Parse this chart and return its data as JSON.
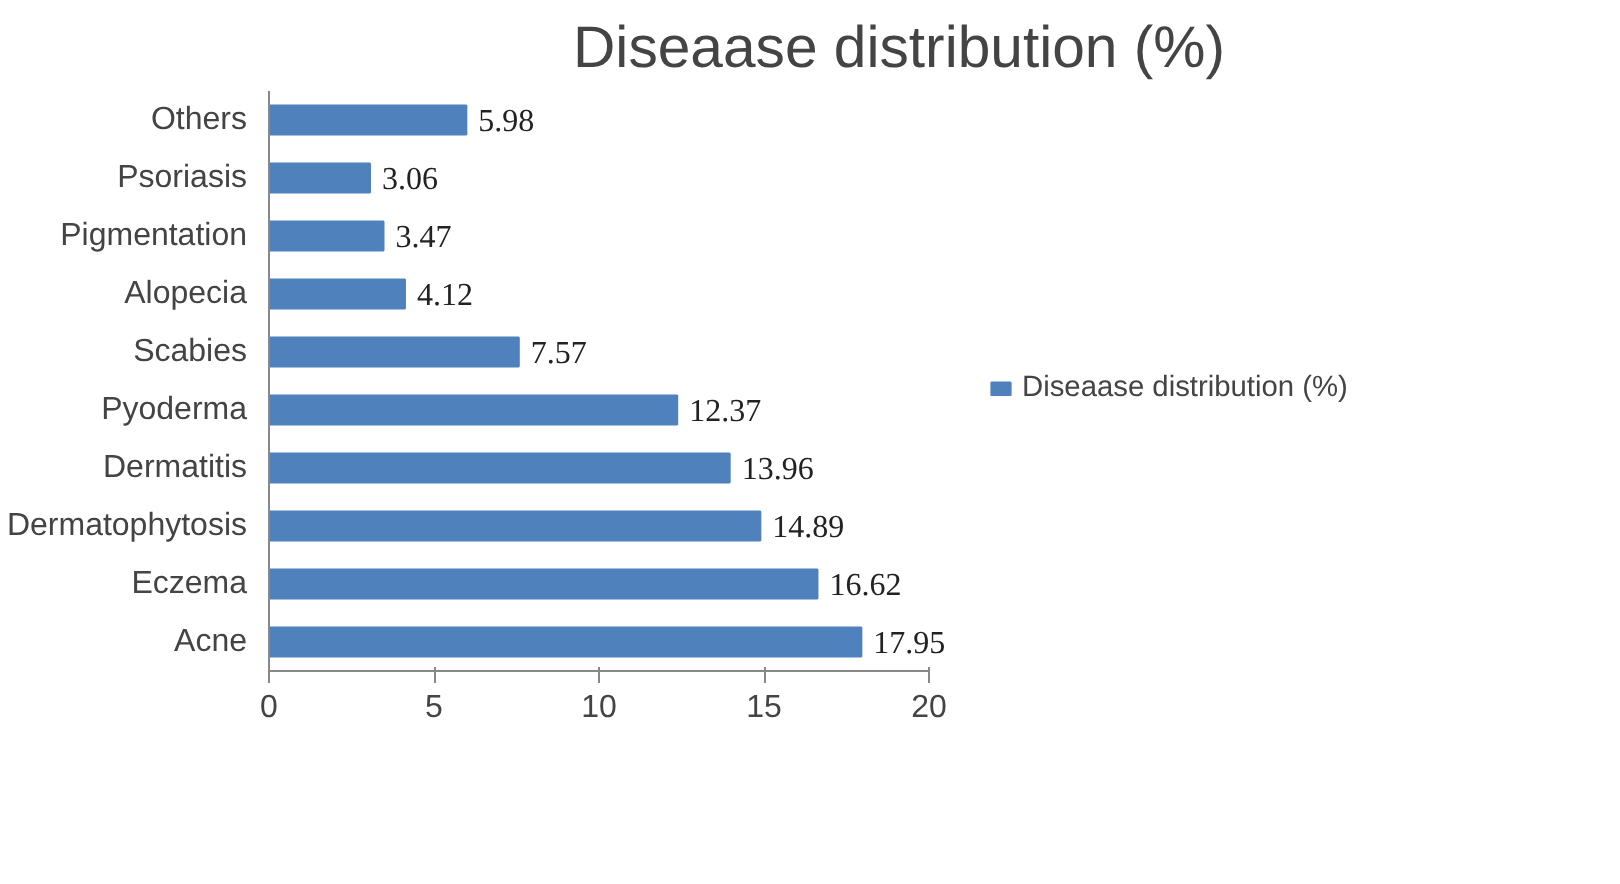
{
  "chart_data": {
    "type": "bar",
    "orientation": "horizontal",
    "title": "Diseaase distribution (%)",
    "categories": [
      "Others",
      "Psoriasis",
      "Pigmentation",
      "Alopecia",
      "Scabies",
      "Pyoderma",
      "Dermatitis",
      "Dermatophytosis",
      "Eczema",
      "Acne"
    ],
    "series": [
      {
        "name": "Diseaase distribution (%)",
        "color": "#4f81bd",
        "values": [
          5.98,
          3.06,
          3.47,
          4.12,
          7.57,
          12.37,
          13.96,
          14.89,
          16.62,
          17.95
        ]
      }
    ],
    "xlim": [
      0,
      20
    ],
    "xticks": [
      0,
      5,
      10,
      15,
      20
    ],
    "grid": false,
    "legend": "right",
    "data_labels": true
  }
}
